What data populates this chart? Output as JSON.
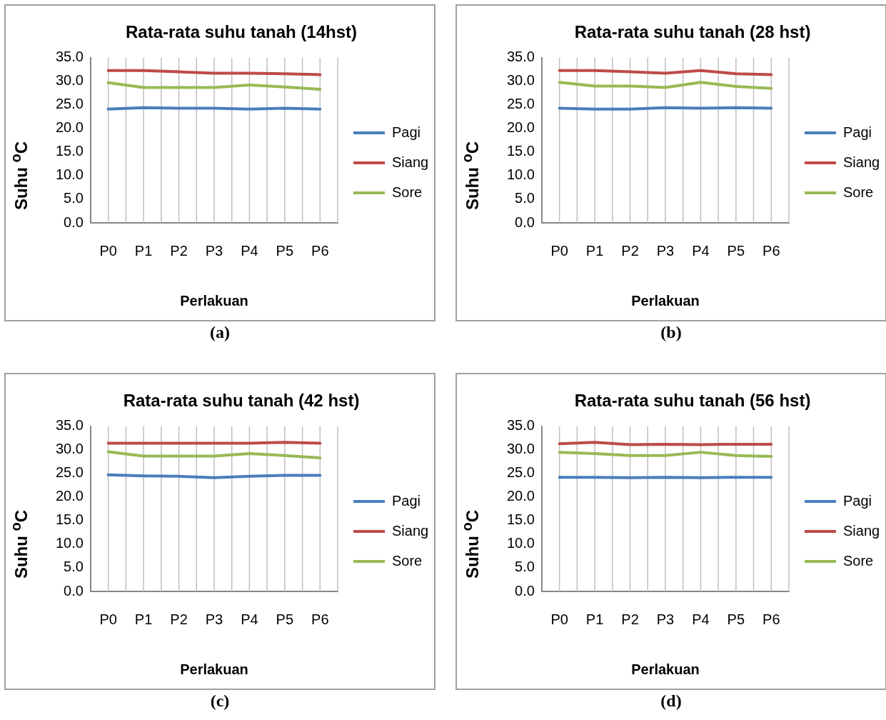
{
  "chart_data": [
    {
      "type": "line",
      "title": "Rata-rata suhu tanah (14hst)",
      "xlabel": "Perlakuan",
      "ylabel": "Suhu  $^{o}$C",
      "annotations": [
        "(a)"
      ],
      "categories": [
        "P0",
        "P1",
        "P2",
        "P3",
        "P4",
        "P5",
        "P6"
      ],
      "series": [
        {
          "name": "Pagi",
          "color": "#4a7ebb",
          "values": [
            24.1,
            24.4,
            24.3,
            24.3,
            24.1,
            24.3,
            24.1
          ]
        },
        {
          "name": "Siang",
          "color": "#be4b48",
          "values": [
            32.3,
            32.3,
            32.0,
            31.7,
            31.7,
            31.6,
            31.4
          ]
        },
        {
          "name": "Sore",
          "color": "#98b954",
          "values": [
            29.7,
            28.7,
            28.7,
            28.7,
            29.2,
            28.8,
            28.3
          ]
        }
      ],
      "ylim": [
        0,
        35
      ],
      "yticks": [
        {
          "value": 0,
          "label": "0.0"
        },
        {
          "value": 5,
          "label": "5.0"
        },
        {
          "value": 10,
          "label": "10.0"
        },
        {
          "value": 15,
          "label": "15.0"
        },
        {
          "value": 20,
          "label": "20.0"
        },
        {
          "value": 25,
          "label": "25.0"
        },
        {
          "value": 30,
          "label": "30.0"
        },
        {
          "value": 35,
          "label": "35.0"
        }
      ],
      "grid": "x",
      "legend": "right",
      "marker": "none"
    },
    {
      "type": "line",
      "title": "Rata-rata suhu tanah (28 hst)",
      "xlabel": "Perlakuan",
      "ylabel": "Suhu  $^{o}$C",
      "annotations": [
        "(b)"
      ],
      "categories": [
        "P0",
        "P1",
        "P2",
        "P3",
        "P4",
        "P5",
        "P6"
      ],
      "series": [
        {
          "name": "Pagi",
          "color": "#4a7ebb",
          "values": [
            24.3,
            24.1,
            24.1,
            24.4,
            24.3,
            24.4,
            24.3
          ]
        },
        {
          "name": "Siang",
          "color": "#be4b48",
          "values": [
            32.3,
            32.3,
            32.0,
            31.7,
            32.3,
            31.6,
            31.4
          ]
        },
        {
          "name": "Sore",
          "color": "#98b954",
          "values": [
            29.8,
            29.0,
            29.0,
            28.7,
            29.8,
            28.9,
            28.5
          ]
        }
      ],
      "ylim": [
        0,
        35
      ],
      "yticks": [
        {
          "value": 0,
          "label": "0.0"
        },
        {
          "value": 5,
          "label": "5.0"
        },
        {
          "value": 10,
          "label": "10.0"
        },
        {
          "value": 15,
          "label": "15.0"
        },
        {
          "value": 20,
          "label": "20.0"
        },
        {
          "value": 25,
          "label": "25.0"
        },
        {
          "value": 30,
          "label": "30.0"
        },
        {
          "value": 35,
          "label": "35.0"
        }
      ],
      "grid": "x",
      "legend": "right",
      "marker": "none"
    },
    {
      "type": "line",
      "title": "Rata-rata suhu tanah (42 hst)",
      "xlabel": "Perlakuan",
      "ylabel": "Suhu  $^{o}$C",
      "annotations": [
        "(c)"
      ],
      "categories": [
        "P0",
        "P1",
        "P2",
        "P3",
        "P4",
        "P5",
        "P6"
      ],
      "series": [
        {
          "name": "Pagi",
          "color": "#4a7ebb",
          "values": [
            24.7,
            24.5,
            24.4,
            24.1,
            24.4,
            24.6,
            24.6
          ]
        },
        {
          "name": "Siang",
          "color": "#be4b48",
          "values": [
            31.4,
            31.4,
            31.4,
            31.4,
            31.4,
            31.6,
            31.4
          ]
        },
        {
          "name": "Sore",
          "color": "#98b954",
          "values": [
            29.6,
            28.7,
            28.7,
            28.7,
            29.2,
            28.8,
            28.3
          ]
        }
      ],
      "ylim": [
        0,
        35
      ],
      "yticks": [
        {
          "value": 0,
          "label": "0.0"
        },
        {
          "value": 5,
          "label": "5.0"
        },
        {
          "value": 10,
          "label": "10.0"
        },
        {
          "value": 15,
          "label": "15.0"
        },
        {
          "value": 20,
          "label": "20.0"
        },
        {
          "value": 25,
          "label": "25.0"
        },
        {
          "value": 30,
          "label": "30.0"
        },
        {
          "value": 35,
          "label": "35.0"
        }
      ],
      "grid": "x",
      "legend": "right",
      "marker": "none"
    },
    {
      "type": "line",
      "title": "Rata-rata suhu tanah (56 hst)",
      "xlabel": "Perlakuan",
      "ylabel": "Suhu  $^{o}$C",
      "annotations": [
        "(d)"
      ],
      "categories": [
        "P0",
        "P1",
        "P2",
        "P3",
        "P4",
        "P5",
        "P6"
      ],
      "series": [
        {
          "name": "Pagi",
          "color": "#4a7ebb",
          "values": [
            24.2,
            24.2,
            24.1,
            24.2,
            24.1,
            24.2,
            24.2
          ]
        },
        {
          "name": "Siang",
          "color": "#be4b48",
          "values": [
            31.3,
            31.6,
            31.1,
            31.2,
            31.1,
            31.2,
            31.2
          ]
        },
        {
          "name": "Sore",
          "color": "#98b954",
          "values": [
            29.5,
            29.2,
            28.8,
            28.8,
            29.5,
            28.8,
            28.6
          ]
        }
      ],
      "ylim": [
        0,
        35
      ],
      "yticks": [
        {
          "value": 0,
          "label": "0.0"
        },
        {
          "value": 5,
          "label": "5.0"
        },
        {
          "value": 10,
          "label": "10.0"
        },
        {
          "value": 15,
          "label": "15.0"
        },
        {
          "value": 20,
          "label": "20.0"
        },
        {
          "value": 25,
          "label": "25.0"
        },
        {
          "value": 30,
          "label": "30.0"
        },
        {
          "value": 35,
          "label": "35.0"
        }
      ],
      "grid": "x",
      "legend": "right",
      "marker": "none"
    }
  ]
}
